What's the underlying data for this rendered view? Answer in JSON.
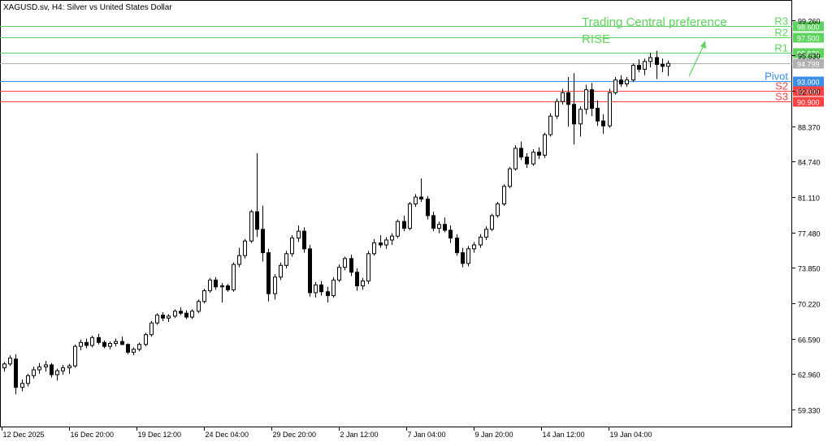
{
  "chart_data": {
    "type": "candlestick",
    "title": "XAGUSD.sv, H4:  Silver vs United States Dollar",
    "annotation": {
      "text_line1": "Trading Central preference",
      "text_line2": "RISE",
      "direction": "up",
      "color": "#5fd35f"
    },
    "colors": {
      "resistance": "#5fd35f",
      "pivot": "#3a8ee6",
      "support": "#ff4040",
      "current_price_line": "#b0b0b0",
      "candle": "#000000",
      "axis_text": "#000000"
    },
    "y_axis": {
      "ticks": [
        "99.260",
        "95.630",
        "92.000",
        "88.370",
        "84.740",
        "81.110",
        "77.480",
        "73.850",
        "70.220",
        "66.590",
        "62.960",
        "59.330"
      ],
      "range": [
        57.5,
        101.3
      ]
    },
    "x_axis": {
      "ticks": [
        "12 Dec 2025",
        "16 Dec 20:00",
        "19 Dec 12:00",
        "24 Dec 04:00",
        "29 Dec 20:00",
        "2 Jan 12:00",
        "7 Jan 04:00",
        "9 Jan 20:00",
        "14 Jan 12:00",
        "19 Jan 04:00"
      ]
    },
    "levels": [
      {
        "name": "R3",
        "value": 98.6,
        "label": "98.600",
        "kind": "resistance"
      },
      {
        "name": "R2",
        "value": 97.5,
        "label": "97.500",
        "kind": "resistance"
      },
      {
        "name": "R1",
        "value": 95.87,
        "label": "95.870",
        "kind": "resistance"
      },
      {
        "name": "Pivot",
        "value": 93.0,
        "label": "93.000",
        "kind": "pivot"
      },
      {
        "name": "S2",
        "value": 92.0,
        "label": "92.000",
        "kind": "support"
      },
      {
        "name": "S3",
        "value": 90.9,
        "label": "90.900",
        "kind": "support"
      }
    ],
    "current_price": {
      "value": 94.799,
      "label": "94.799"
    },
    "candles": [
      [
        63.6,
        64.2,
        63.2,
        64.0
      ],
      [
        64.0,
        64.9,
        63.8,
        64.6
      ],
      [
        64.5,
        65.0,
        60.9,
        61.6
      ],
      [
        61.6,
        62.4,
        61.2,
        62.0
      ],
      [
        62.0,
        63.0,
        61.7,
        62.8
      ],
      [
        62.8,
        63.7,
        62.5,
        63.4
      ],
      [
        63.4,
        64.1,
        63.0,
        63.7
      ],
      [
        63.7,
        64.3,
        63.2,
        63.9
      ],
      [
        63.9,
        64.1,
        62.6,
        62.9
      ],
      [
        62.9,
        63.5,
        62.3,
        63.3
      ],
      [
        63.3,
        63.9,
        62.9,
        63.6
      ],
      [
        63.6,
        64.0,
        63.0,
        63.8
      ],
      [
        63.8,
        66.0,
        63.6,
        65.8
      ],
      [
        65.8,
        66.5,
        65.4,
        66.2
      ],
      [
        66.2,
        66.6,
        65.6,
        65.9
      ],
      [
        65.9,
        66.9,
        65.7,
        66.7
      ],
      [
        66.7,
        67.1,
        66.0,
        66.2
      ],
      [
        66.2,
        66.4,
        65.6,
        65.8
      ],
      [
        65.8,
        66.3,
        65.5,
        66.1
      ],
      [
        66.1,
        66.6,
        65.8,
        66.3
      ],
      [
        66.3,
        66.8,
        65.9,
        66.0
      ],
      [
        66.0,
        66.1,
        65.0,
        65.2
      ],
      [
        65.2,
        65.7,
        64.9,
        65.5
      ],
      [
        65.5,
        66.2,
        65.3,
        66.0
      ],
      [
        66.0,
        67.2,
        65.8,
        67.0
      ],
      [
        67.0,
        68.4,
        66.8,
        68.2
      ],
      [
        68.2,
        69.2,
        68.0,
        69.0
      ],
      [
        69.0,
        69.3,
        68.4,
        68.7
      ],
      [
        68.7,
        69.1,
        68.3,
        68.9
      ],
      [
        68.9,
        69.6,
        68.7,
        69.4
      ],
      [
        69.4,
        69.8,
        69.0,
        69.2
      ],
      [
        69.2,
        69.5,
        68.6,
        68.8
      ],
      [
        68.8,
        69.6,
        68.6,
        69.4
      ],
      [
        69.4,
        70.6,
        69.2,
        70.4
      ],
      [
        70.4,
        71.7,
        70.2,
        71.5
      ],
      [
        71.5,
        72.8,
        71.3,
        72.6
      ],
      [
        72.6,
        72.9,
        71.6,
        71.9
      ],
      [
        71.9,
        72.3,
        70.3,
        72.0
      ],
      [
        72.0,
        72.2,
        71.4,
        71.6
      ],
      [
        71.6,
        74.4,
        71.4,
        74.2
      ],
      [
        74.2,
        75.9,
        73.9,
        75.1
      ],
      [
        75.1,
        76.8,
        74.8,
        76.6
      ],
      [
        76.6,
        79.8,
        76.4,
        79.6
      ],
      [
        79.6,
        85.6,
        77.0,
        77.8
      ],
      [
        77.8,
        80.2,
        74.5,
        75.4
      ],
      [
        75.4,
        75.8,
        70.4,
        71.2
      ],
      [
        71.2,
        73.2,
        70.6,
        72.9
      ],
      [
        72.9,
        74.4,
        72.6,
        74.1
      ],
      [
        74.1,
        75.6,
        73.8,
        75.3
      ],
      [
        75.3,
        77.2,
        75.0,
        76.9
      ],
      [
        76.9,
        78.2,
        76.5,
        77.6
      ],
      [
        77.6,
        78.0,
        75.4,
        75.8
      ],
      [
        75.8,
        76.2,
        70.9,
        71.3
      ],
      [
        71.3,
        72.4,
        70.8,
        72.1
      ],
      [
        72.1,
        72.5,
        71.0,
        71.4
      ],
      [
        71.4,
        71.9,
        70.3,
        71.0
      ],
      [
        71.0,
        72.9,
        70.8,
        72.6
      ],
      [
        72.6,
        74.2,
        72.4,
        73.9
      ],
      [
        73.9,
        75.0,
        73.6,
        74.8
      ],
      [
        74.8,
        75.2,
        73.0,
        73.4
      ],
      [
        73.4,
        73.8,
        71.5,
        72.0
      ],
      [
        72.0,
        72.8,
        71.6,
        72.5
      ],
      [
        72.5,
        75.6,
        72.2,
        75.3
      ],
      [
        75.3,
        76.8,
        75.1,
        76.4
      ],
      [
        76.4,
        77.2,
        75.9,
        76.2
      ],
      [
        76.2,
        77.0,
        75.8,
        76.7
      ],
      [
        76.7,
        77.4,
        76.2,
        77.1
      ],
      [
        77.1,
        78.8,
        76.9,
        78.6
      ],
      [
        78.6,
        79.2,
        77.6,
        77.9
      ],
      [
        77.9,
        80.6,
        77.7,
        80.4
      ],
      [
        80.4,
        81.4,
        80.1,
        81.1
      ],
      [
        81.1,
        83.0,
        80.6,
        80.9
      ],
      [
        80.9,
        81.2,
        78.8,
        79.2
      ],
      [
        79.2,
        79.6,
        77.6,
        77.9
      ],
      [
        77.9,
        78.6,
        77.4,
        78.3
      ],
      [
        78.3,
        79.0,
        77.5,
        77.7
      ],
      [
        77.7,
        78.2,
        76.4,
        76.9
      ],
      [
        76.9,
        77.3,
        75.1,
        75.4
      ],
      [
        75.4,
        75.9,
        73.9,
        74.3
      ],
      [
        74.3,
        76.1,
        74.0,
        75.8
      ],
      [
        75.8,
        76.5,
        75.4,
        76.2
      ],
      [
        76.2,
        77.3,
        75.9,
        77.0
      ],
      [
        77.0,
        78.1,
        76.7,
        77.8
      ],
      [
        77.8,
        79.4,
        77.6,
        79.2
      ],
      [
        79.2,
        80.6,
        79.0,
        80.4
      ],
      [
        80.4,
        82.4,
        80.2,
        82.2
      ],
      [
        82.2,
        84.2,
        82.0,
        84.0
      ],
      [
        84.0,
        86.4,
        83.8,
        86.1
      ],
      [
        86.1,
        86.8,
        84.9,
        85.2
      ],
      [
        85.2,
        85.6,
        84.1,
        84.5
      ],
      [
        84.5,
        86.0,
        84.3,
        85.7
      ],
      [
        85.7,
        86.2,
        85.0,
        85.4
      ],
      [
        85.4,
        87.7,
        85.1,
        87.5
      ],
      [
        87.5,
        89.7,
        87.3,
        89.4
      ],
      [
        89.4,
        91.2,
        89.1,
        90.9
      ],
      [
        90.9,
        92.2,
        90.6,
        91.8
      ],
      [
        91.8,
        93.4,
        88.3,
        90.6
      ],
      [
        90.6,
        93.8,
        86.5,
        88.6
      ],
      [
        88.6,
        90.4,
        87.3,
        90.1
      ],
      [
        90.1,
        92.6,
        89.6,
        92.1
      ],
      [
        92.1,
        92.8,
        89.4,
        90.2
      ],
      [
        90.2,
        91.0,
        88.4,
        88.9
      ],
      [
        88.9,
        89.6,
        87.6,
        88.4
      ],
      [
        88.4,
        92.2,
        88.2,
        91.8
      ],
      [
        91.8,
        93.4,
        91.6,
        93.1
      ],
      [
        93.1,
        93.6,
        92.4,
        92.7
      ],
      [
        92.7,
        93.4,
        92.4,
        93.1
      ],
      [
        93.1,
        94.8,
        92.9,
        94.6
      ],
      [
        94.6,
        95.2,
        93.9,
        94.2
      ],
      [
        94.2,
        95.3,
        93.6,
        95.0
      ],
      [
        95.0,
        95.9,
        94.4,
        95.4
      ],
      [
        95.4,
        96.1,
        93.2,
        94.7
      ],
      [
        94.7,
        95.3,
        93.9,
        94.5
      ],
      [
        94.5,
        95.1,
        93.5,
        94.8
      ]
    ]
  }
}
